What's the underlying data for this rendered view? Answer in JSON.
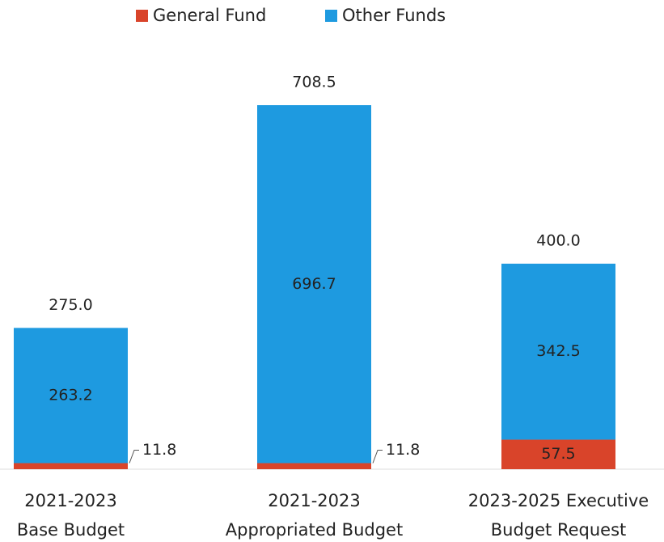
{
  "chart_data": {
    "type": "stacked-bar",
    "categories": [
      [
        "2021-2023",
        "Base Budget"
      ],
      [
        "2021-2023",
        "Appropriated Budget"
      ],
      [
        "2023-2025 Executive",
        "Budget Request"
      ]
    ],
    "series": [
      {
        "name": "General Fund",
        "color": "#d9442a",
        "values": [
          11.8,
          11.8,
          57.5
        ]
      },
      {
        "name": "Other Funds",
        "color": "#1e9ae0",
        "values": [
          263.2,
          696.7,
          342.5
        ]
      }
    ],
    "totals": [
      275.0,
      708.5,
      400.0
    ],
    "totals_labels": [
      "275.0",
      "708.5",
      "400.0"
    ]
  }
}
